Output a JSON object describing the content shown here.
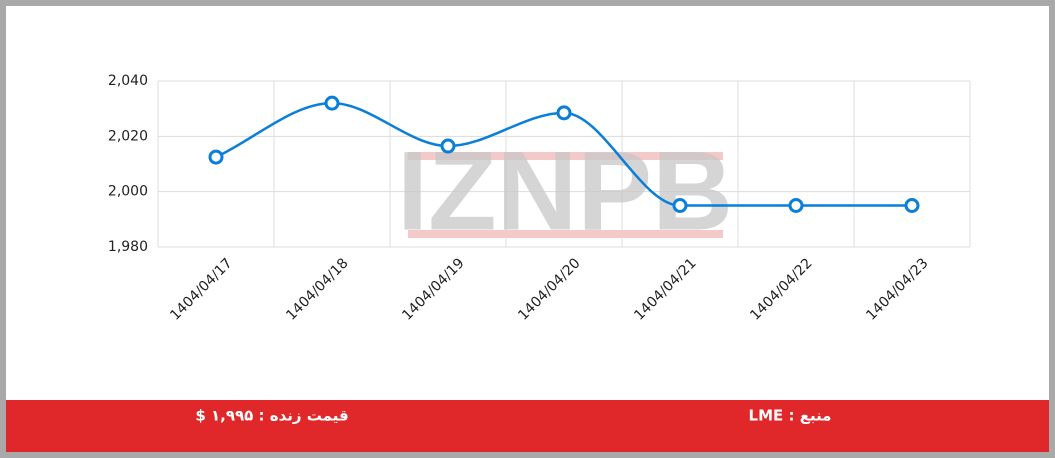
{
  "chart_data": {
    "type": "line",
    "categories": [
      "1404/04/17",
      "1404/04/18",
      "1404/04/19",
      "1404/04/20",
      "1404/04/21",
      "1404/04/22",
      "1404/04/23"
    ],
    "values": [
      2012.5,
      2032,
      2016.5,
      2028.5,
      1995,
      1995,
      1995
    ],
    "color": "#0a7fd9",
    "ylim": [
      1980,
      2040
    ],
    "yticks": [
      {
        "value": 1980,
        "label": "1,980"
      },
      {
        "value": 2000,
        "label": "2,000"
      },
      {
        "value": 2020,
        "label": "2,020"
      },
      {
        "value": 2040,
        "label": "2,040"
      }
    ],
    "grid": true,
    "watermark": "IZNPB"
  },
  "footer": {
    "source": "منبع : LME",
    "price": "قیمت زنده : ۱,۹۹۵ $"
  }
}
